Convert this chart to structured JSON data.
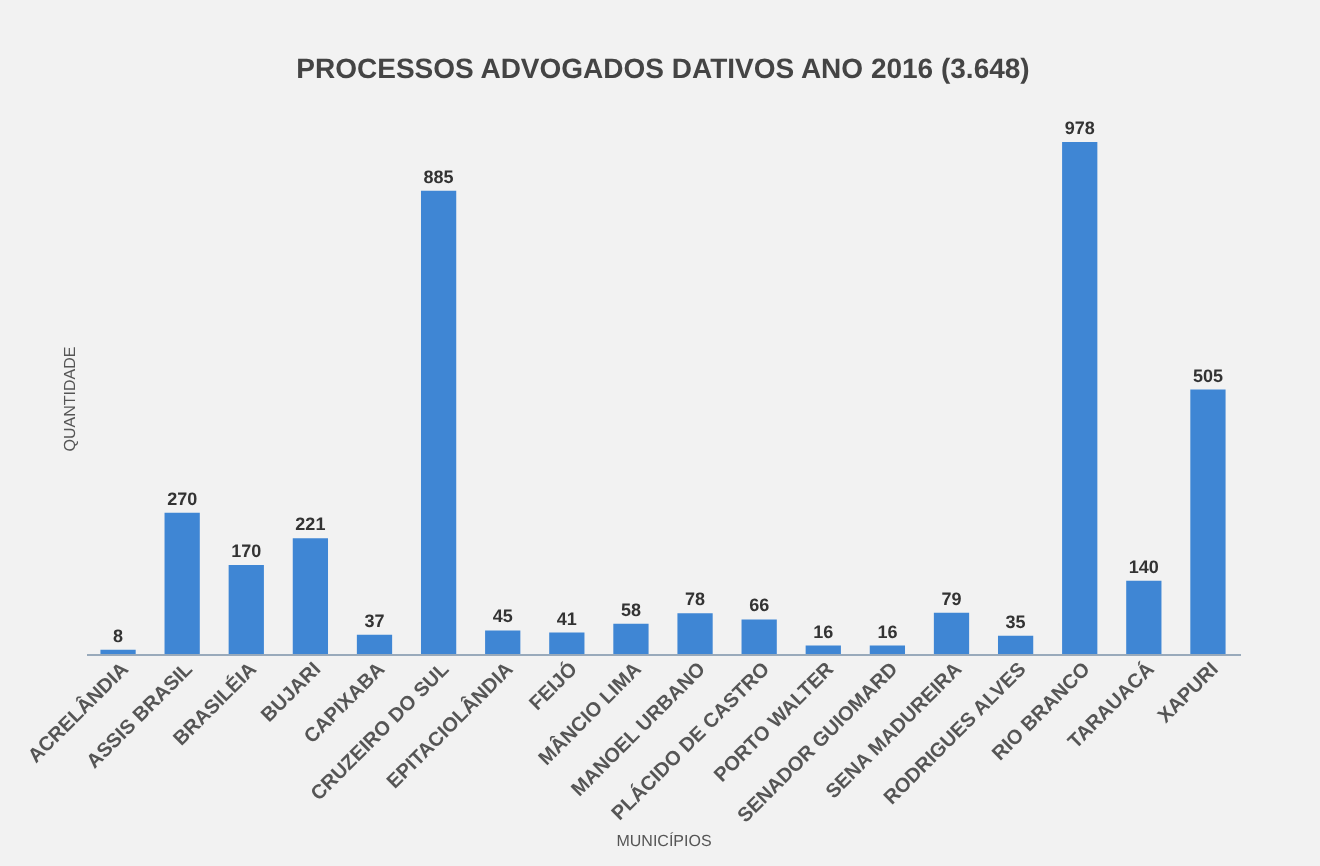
{
  "chart_data": {
    "type": "bar",
    "title": "PROCESSOS ADVOGADOS DATIVOS ANO 2016 (3.648)",
    "xlabel": "MUNICÍPIOS",
    "ylabel": "QUANTIDADE",
    "categories": [
      "ACRELÂNDIA",
      "ASSIS BRASIL",
      "BRASILÉIA",
      "BUJARI",
      "CAPIXABA",
      "CRUZEIRO DO SUL",
      "EPITACIOLÂNDIA",
      "FEIJÓ",
      "MÂNCIO LIMA",
      "MANOEL URBANO",
      "PLÁCIDO DE CASTRO",
      "PORTO WALTER",
      "SENADOR GUIOMARD",
      "SENA MADUREIRA",
      "RODRIGUES ALVES",
      "RIO BRANCO",
      "TARAUACÁ",
      "XAPURI"
    ],
    "values": [
      8,
      270,
      170,
      221,
      37,
      885,
      45,
      41,
      58,
      78,
      66,
      16,
      16,
      79,
      35,
      978,
      140,
      505
    ],
    "color": "#3f86d4",
    "data_labels": true,
    "tick_labels": "x",
    "grid": false
  }
}
